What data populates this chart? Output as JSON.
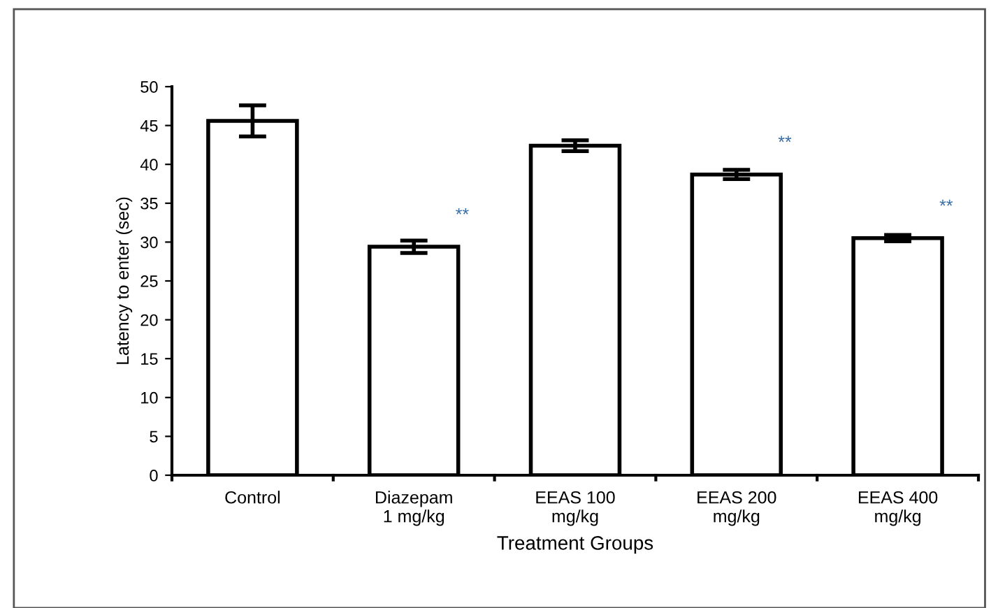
{
  "chart_data": {
    "type": "bar",
    "categories": [
      "Control",
      "Diazepam\n1 mg/kg",
      "EEAS 100\nmg/kg",
      "EEAS 200\nmg/kg",
      "EEAS 400\nmg/kg"
    ],
    "values": [
      45.6,
      29.4,
      42.4,
      38.7,
      30.5
    ],
    "errors": [
      2.0,
      0.8,
      0.7,
      0.6,
      0.4
    ],
    "color": "#ffffff",
    "xlabel": "Treatment Groups",
    "ylabel": "Latency to enter (sec)",
    "ylim": [
      0,
      50
    ],
    "yticks": [
      0,
      5,
      10,
      15,
      20,
      25,
      30,
      35,
      40,
      45,
      50
    ],
    "grid": false,
    "value_labels": [
      null,
      "**",
      null,
      "**",
      "**"
    ]
  }
}
